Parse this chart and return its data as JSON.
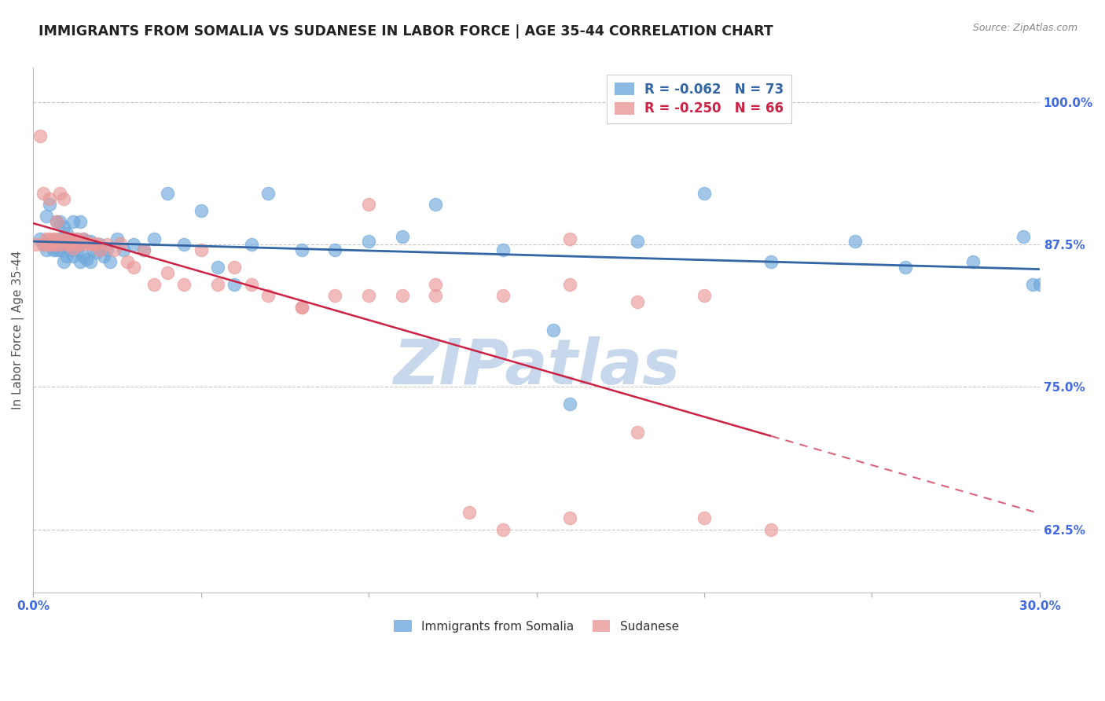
{
  "title": "IMMIGRANTS FROM SOMALIA VS SUDANESE IN LABOR FORCE | AGE 35-44 CORRELATION CHART",
  "source": "Source: ZipAtlas.com",
  "ylabel": "In Labor Force | Age 35-44",
  "xlim": [
    0.0,
    0.3
  ],
  "ylim": [
    0.57,
    1.03
  ],
  "yticks": [
    0.625,
    0.75,
    0.875,
    1.0
  ],
  "ytick_labels": [
    "62.5%",
    "75.0%",
    "87.5%",
    "100.0%"
  ],
  "xticks": [
    0.0,
    0.05,
    0.1,
    0.15,
    0.2,
    0.25,
    0.3
  ],
  "xtick_labels": [
    "0.0%",
    "",
    "",
    "",
    "",
    "",
    "30.0%"
  ],
  "somalia_R": -0.062,
  "somalia_N": 73,
  "sudan_R": -0.25,
  "sudan_N": 66,
  "somalia_color": "#6fa8dc",
  "sudan_color": "#ea9999",
  "trend_somalia_color": "#3465a4",
  "trend_sudan_color": "#cc2244",
  "background_color": "#ffffff",
  "grid_color": "#c8c8c8",
  "tick_label_color": "#4169e1",
  "watermark_color": "#c8d8ec",
  "somalia_x": [
    0.002,
    0.003,
    0.004,
    0.004,
    0.005,
    0.005,
    0.005,
    0.006,
    0.006,
    0.006,
    0.007,
    0.007,
    0.007,
    0.008,
    0.008,
    0.008,
    0.009,
    0.009,
    0.009,
    0.01,
    0.01,
    0.01,
    0.011,
    0.011,
    0.012,
    0.012,
    0.012,
    0.013,
    0.013,
    0.014,
    0.014,
    0.014,
    0.015,
    0.015,
    0.016,
    0.016,
    0.017,
    0.017,
    0.018,
    0.019,
    0.02,
    0.021,
    0.022,
    0.023,
    0.025,
    0.027,
    0.03,
    0.033,
    0.036,
    0.04,
    0.045,
    0.05,
    0.055,
    0.06,
    0.065,
    0.07,
    0.08,
    0.09,
    0.1,
    0.11,
    0.12,
    0.14,
    0.16,
    0.18,
    0.2,
    0.22,
    0.245,
    0.26,
    0.28,
    0.295,
    0.298,
    0.3,
    0.155
  ],
  "somalia_y": [
    0.88,
    0.875,
    0.9,
    0.87,
    0.875,
    0.91,
    0.875,
    0.875,
    0.87,
    0.875,
    0.895,
    0.87,
    0.875,
    0.895,
    0.88,
    0.87,
    0.89,
    0.875,
    0.86,
    0.885,
    0.875,
    0.865,
    0.88,
    0.87,
    0.895,
    0.875,
    0.865,
    0.88,
    0.87,
    0.895,
    0.875,
    0.86,
    0.88,
    0.865,
    0.878,
    0.862,
    0.878,
    0.86,
    0.87,
    0.868,
    0.875,
    0.865,
    0.87,
    0.86,
    0.88,
    0.87,
    0.875,
    0.87,
    0.88,
    0.92,
    0.875,
    0.905,
    0.855,
    0.84,
    0.875,
    0.92,
    0.87,
    0.87,
    0.878,
    0.882,
    0.91,
    0.87,
    0.735,
    0.878,
    0.92,
    0.86,
    0.878,
    0.855,
    0.86,
    0.882,
    0.84,
    0.84,
    0.8
  ],
  "sudan_x": [
    0.001,
    0.002,
    0.003,
    0.003,
    0.004,
    0.004,
    0.005,
    0.005,
    0.005,
    0.006,
    0.006,
    0.007,
    0.007,
    0.007,
    0.008,
    0.008,
    0.009,
    0.009,
    0.01,
    0.01,
    0.011,
    0.011,
    0.012,
    0.012,
    0.013,
    0.013,
    0.014,
    0.015,
    0.016,
    0.017,
    0.018,
    0.019,
    0.02,
    0.022,
    0.024,
    0.026,
    0.028,
    0.03,
    0.033,
    0.036,
    0.04,
    0.045,
    0.05,
    0.055,
    0.06,
    0.065,
    0.07,
    0.08,
    0.09,
    0.1,
    0.11,
    0.12,
    0.14,
    0.16,
    0.18,
    0.2,
    0.16,
    0.12,
    0.1,
    0.08,
    0.14,
    0.2,
    0.22,
    0.18,
    0.16,
    0.13
  ],
  "sudan_y": [
    0.875,
    0.97,
    0.875,
    0.92,
    0.88,
    0.875,
    0.88,
    0.915,
    0.875,
    0.88,
    0.875,
    0.895,
    0.875,
    0.88,
    0.92,
    0.875,
    0.88,
    0.915,
    0.875,
    0.88,
    0.878,
    0.875,
    0.88,
    0.872,
    0.88,
    0.875,
    0.875,
    0.88,
    0.876,
    0.876,
    0.875,
    0.876,
    0.87,
    0.875,
    0.87,
    0.876,
    0.86,
    0.855,
    0.87,
    0.84,
    0.85,
    0.84,
    0.87,
    0.84,
    0.855,
    0.84,
    0.83,
    0.82,
    0.83,
    0.91,
    0.83,
    0.84,
    0.83,
    0.84,
    0.825,
    0.83,
    0.88,
    0.83,
    0.83,
    0.82,
    0.625,
    0.635,
    0.625,
    0.71,
    0.635,
    0.64
  ],
  "trend_somalia_x_start": 0.0,
  "trend_somalia_x_end": 0.3,
  "trend_sudan_x_start": 0.0,
  "trend_sudan_x_end": 0.3,
  "trend_sudan_solid_end": 0.22
}
